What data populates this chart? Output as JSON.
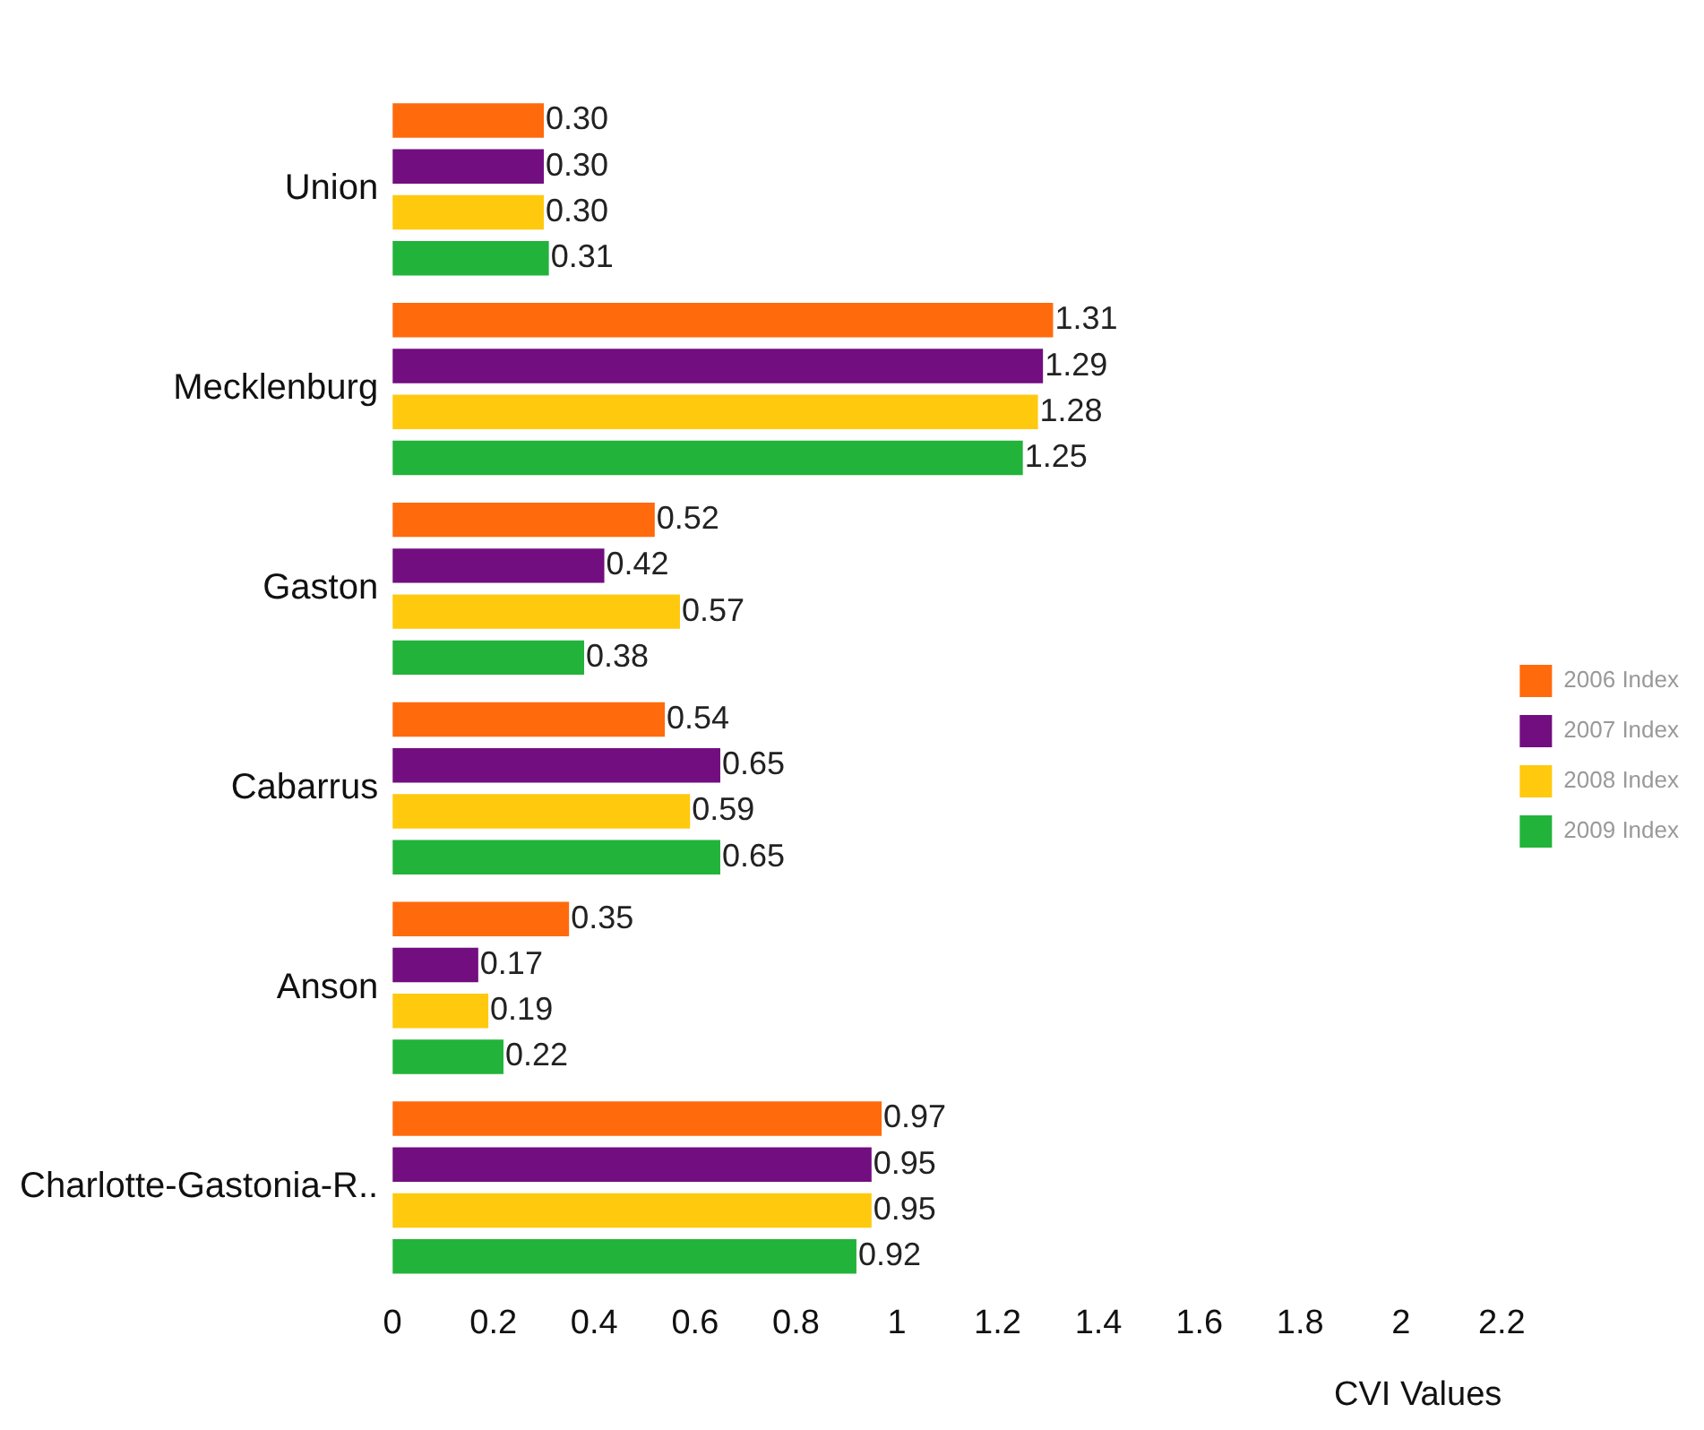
{
  "chart_data": {
    "type": "bar",
    "orientation": "horizontal",
    "xlabel": "CVI Values",
    "categories": [
      "Union",
      "Mecklenburg",
      "Gaston",
      "Cabarrus",
      "Anson",
      "Charlotte-Gastonia-R.."
    ],
    "series": [
      {
        "name": "2006 Index",
        "color": "#ff6a0d",
        "values": [
          0.3,
          1.31,
          0.52,
          0.54,
          0.35,
          0.97
        ],
        "value_labels": [
          "0.30",
          "1.31",
          "0.52",
          "0.54",
          "0.35",
          "0.97"
        ]
      },
      {
        "name": "2007 Index",
        "color": "#720e80",
        "values": [
          0.3,
          1.29,
          0.42,
          0.65,
          0.17,
          0.95
        ],
        "value_labels": [
          "0.30",
          "1.29",
          "0.42",
          "0.65",
          "0.17",
          "0.95"
        ]
      },
      {
        "name": "2008 Index",
        "color": "#ffc90e",
        "values": [
          0.3,
          1.28,
          0.57,
          0.59,
          0.19,
          0.95
        ],
        "value_labels": [
          "0.30",
          "1.28",
          "0.57",
          "0.59",
          "0.19",
          "0.95"
        ]
      },
      {
        "name": "2009 Index",
        "color": "#22b33a",
        "values": [
          0.31,
          1.25,
          0.38,
          0.65,
          0.22,
          0.92
        ],
        "value_labels": [
          "0.31",
          "1.25",
          "0.38",
          "0.65",
          "0.22",
          "0.92"
        ]
      }
    ],
    "xlim": [
      0,
      2.2
    ],
    "xticks": [
      0,
      0.2,
      0.4,
      0.6,
      0.8,
      1,
      1.2,
      1.4,
      1.6,
      1.8,
      2,
      2.2
    ],
    "grid": false,
    "legend": "right"
  }
}
